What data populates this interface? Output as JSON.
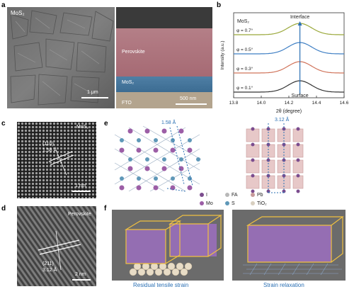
{
  "panels": {
    "a": {
      "letter": "a",
      "left_label": "MoS₂",
      "left_scale": "1 μm",
      "layers": [
        "Perovskite",
        "MoS₂",
        "FTO"
      ],
      "right_scale": "500 nm"
    },
    "b": {
      "letter": "b"
    },
    "c": {
      "letter": "c",
      "material": "MoS₂",
      "plane": "(110)",
      "spacing": "1.58 Å",
      "scale": "1 nm"
    },
    "d": {
      "letter": "d",
      "material": "Perovskite",
      "plane": "(211)",
      "spacing": "3.12 Å",
      "scale": "2 nm"
    },
    "e": {
      "letter": "e",
      "left_dist": "1.58 Å",
      "right_dist": "3.12 Å",
      "legend": [
        {
          "symbol": "I",
          "color": "#7b4c8e"
        },
        {
          "symbol": "FA",
          "color": "#b8b8b8"
        },
        {
          "symbol": "Pb",
          "color": "#c79a9a"
        },
        {
          "symbol": "Mo",
          "color": "#9c5ea6"
        },
        {
          "symbol": "S",
          "color": "#5f98b8"
        },
        {
          "symbol": "TiO₂",
          "color": "#d8cfc0"
        }
      ]
    },
    "f": {
      "letter": "f",
      "left_caption": "Residual tensile strain",
      "right_caption": "Strain relaxation"
    }
  },
  "chart_data": {
    "type": "line",
    "title": "",
    "material_label": "MoS₂",
    "xlabel": "2θ (degree)",
    "ylabel": "Intensity (a.u.)",
    "xlim": [
      13.8,
      14.6
    ],
    "xticks": [
      "13.8",
      "14.0",
      "14.2",
      "14.4",
      "14.6"
    ],
    "xtick_values": [
      13.8,
      14.0,
      14.2,
      14.4,
      14.6
    ],
    "peak_x": 14.28,
    "top_annotation": "Interface",
    "bottom_annotation": "Surface",
    "series": [
      {
        "name": "φ = 0.7°",
        "color": "#9aa83a"
      },
      {
        "name": "φ = 0.5°",
        "color": "#3f7fc4"
      },
      {
        "name": "φ = 0.3°",
        "color": "#d0735a"
      },
      {
        "name": "φ = 0.1°",
        "color": "#333333"
      }
    ]
  }
}
